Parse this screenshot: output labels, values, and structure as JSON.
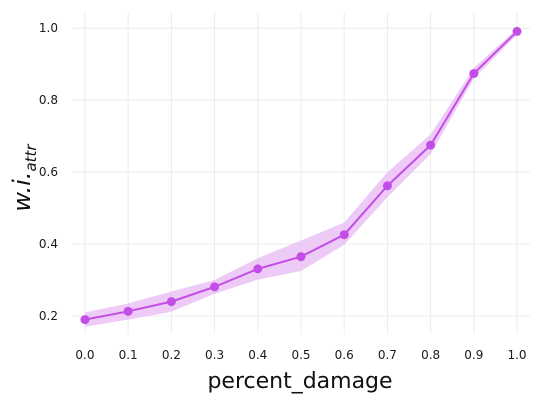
{
  "chart_data": {
    "type": "line",
    "xlabel": "percent_damage",
    "ylabel": {
      "main": "w.i.",
      "subscript": "attr"
    },
    "x": [
      0.0,
      0.1,
      0.2,
      0.3,
      0.4,
      0.5,
      0.6,
      0.7,
      0.8,
      0.9,
      1.0
    ],
    "x_tick_labels": [
      "0.0",
      "0.1",
      "0.2",
      "0.3",
      "0.4",
      "0.5",
      "0.6",
      "0.7",
      "0.8",
      "0.9",
      "1.0"
    ],
    "y_ticks": [
      0.2,
      0.4,
      0.6,
      0.8,
      1.0
    ],
    "y_tick_labels": [
      "0.2",
      "0.4",
      "0.6",
      "0.8",
      "1.0"
    ],
    "xlim": [
      -0.03,
      1.03
    ],
    "ylim": [
      0.15,
      1.045
    ],
    "grid": true,
    "legend": "none",
    "series": [
      {
        "values": [
          0.19,
          0.213,
          0.24,
          0.281,
          0.331,
          0.365,
          0.426,
          0.562,
          0.675,
          0.874,
          0.991
        ],
        "lower": [
          0.17,
          0.19,
          0.212,
          0.262,
          0.301,
          0.325,
          0.398,
          0.53,
          0.65,
          0.86,
          0.982
        ],
        "upper": [
          0.21,
          0.235,
          0.268,
          0.3,
          0.361,
          0.41,
          0.46,
          0.6,
          0.705,
          0.89,
          0.998
        ],
        "color": "#c24ee6",
        "band_color": "#e8b8f4"
      }
    ]
  }
}
